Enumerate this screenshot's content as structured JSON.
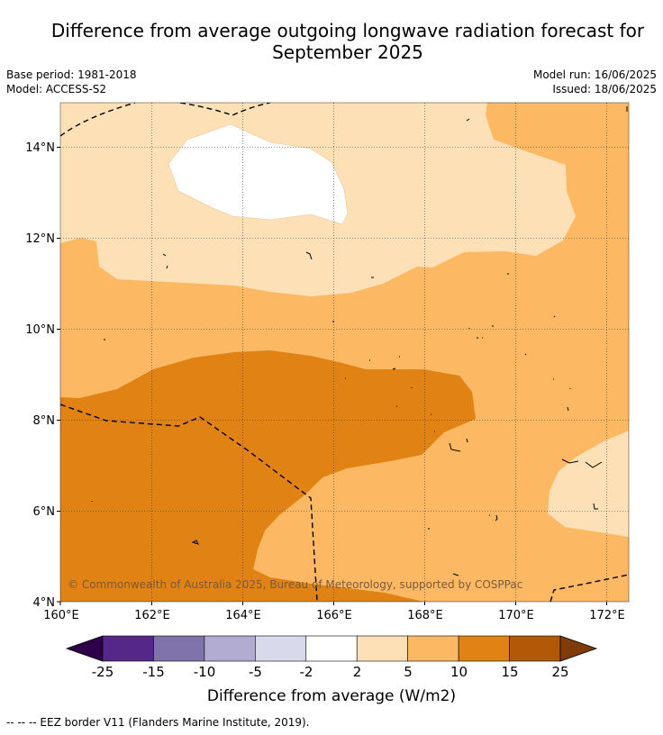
{
  "title_line1": "Difference from average outgoing longwave radiation forecast for",
  "title_line2": "September 2025",
  "meta_left": [
    "Base period: 1981-2018",
    "Model: ACCESS-S2"
  ],
  "meta_right": [
    "Model run: 16/06/2025",
    "Issued: 18/06/2025"
  ],
  "map": {
    "lon_labels": [
      "160°E",
      "162°E",
      "164°E",
      "166°E",
      "168°E",
      "170°E",
      "172°E"
    ],
    "lat_labels": [
      "14°N",
      "12°N",
      "10°N",
      "8°N",
      "6°N",
      "4°N"
    ],
    "copyright": "© Commonwealth of Australia 2025, Bureau of Meteorology, supported by COSPPac"
  },
  "colorbar": {
    "ticks": [
      "-25",
      "-15",
      "-10",
      "-5",
      "-2",
      "2",
      "5",
      "10",
      "15",
      "25"
    ],
    "colors": [
      "#2d004b",
      "#542788",
      "#8073ac",
      "#b2abd2",
      "#d8daeb",
      "#ffffff",
      "#fee0b6",
      "#fdb863",
      "#e08214",
      "#b35806",
      "#7f3b08"
    ],
    "label": "Difference from average (W/m2)"
  },
  "footer": "--  --  -- EEZ border V11 (Flanders Marine Institute, 2019)."
}
